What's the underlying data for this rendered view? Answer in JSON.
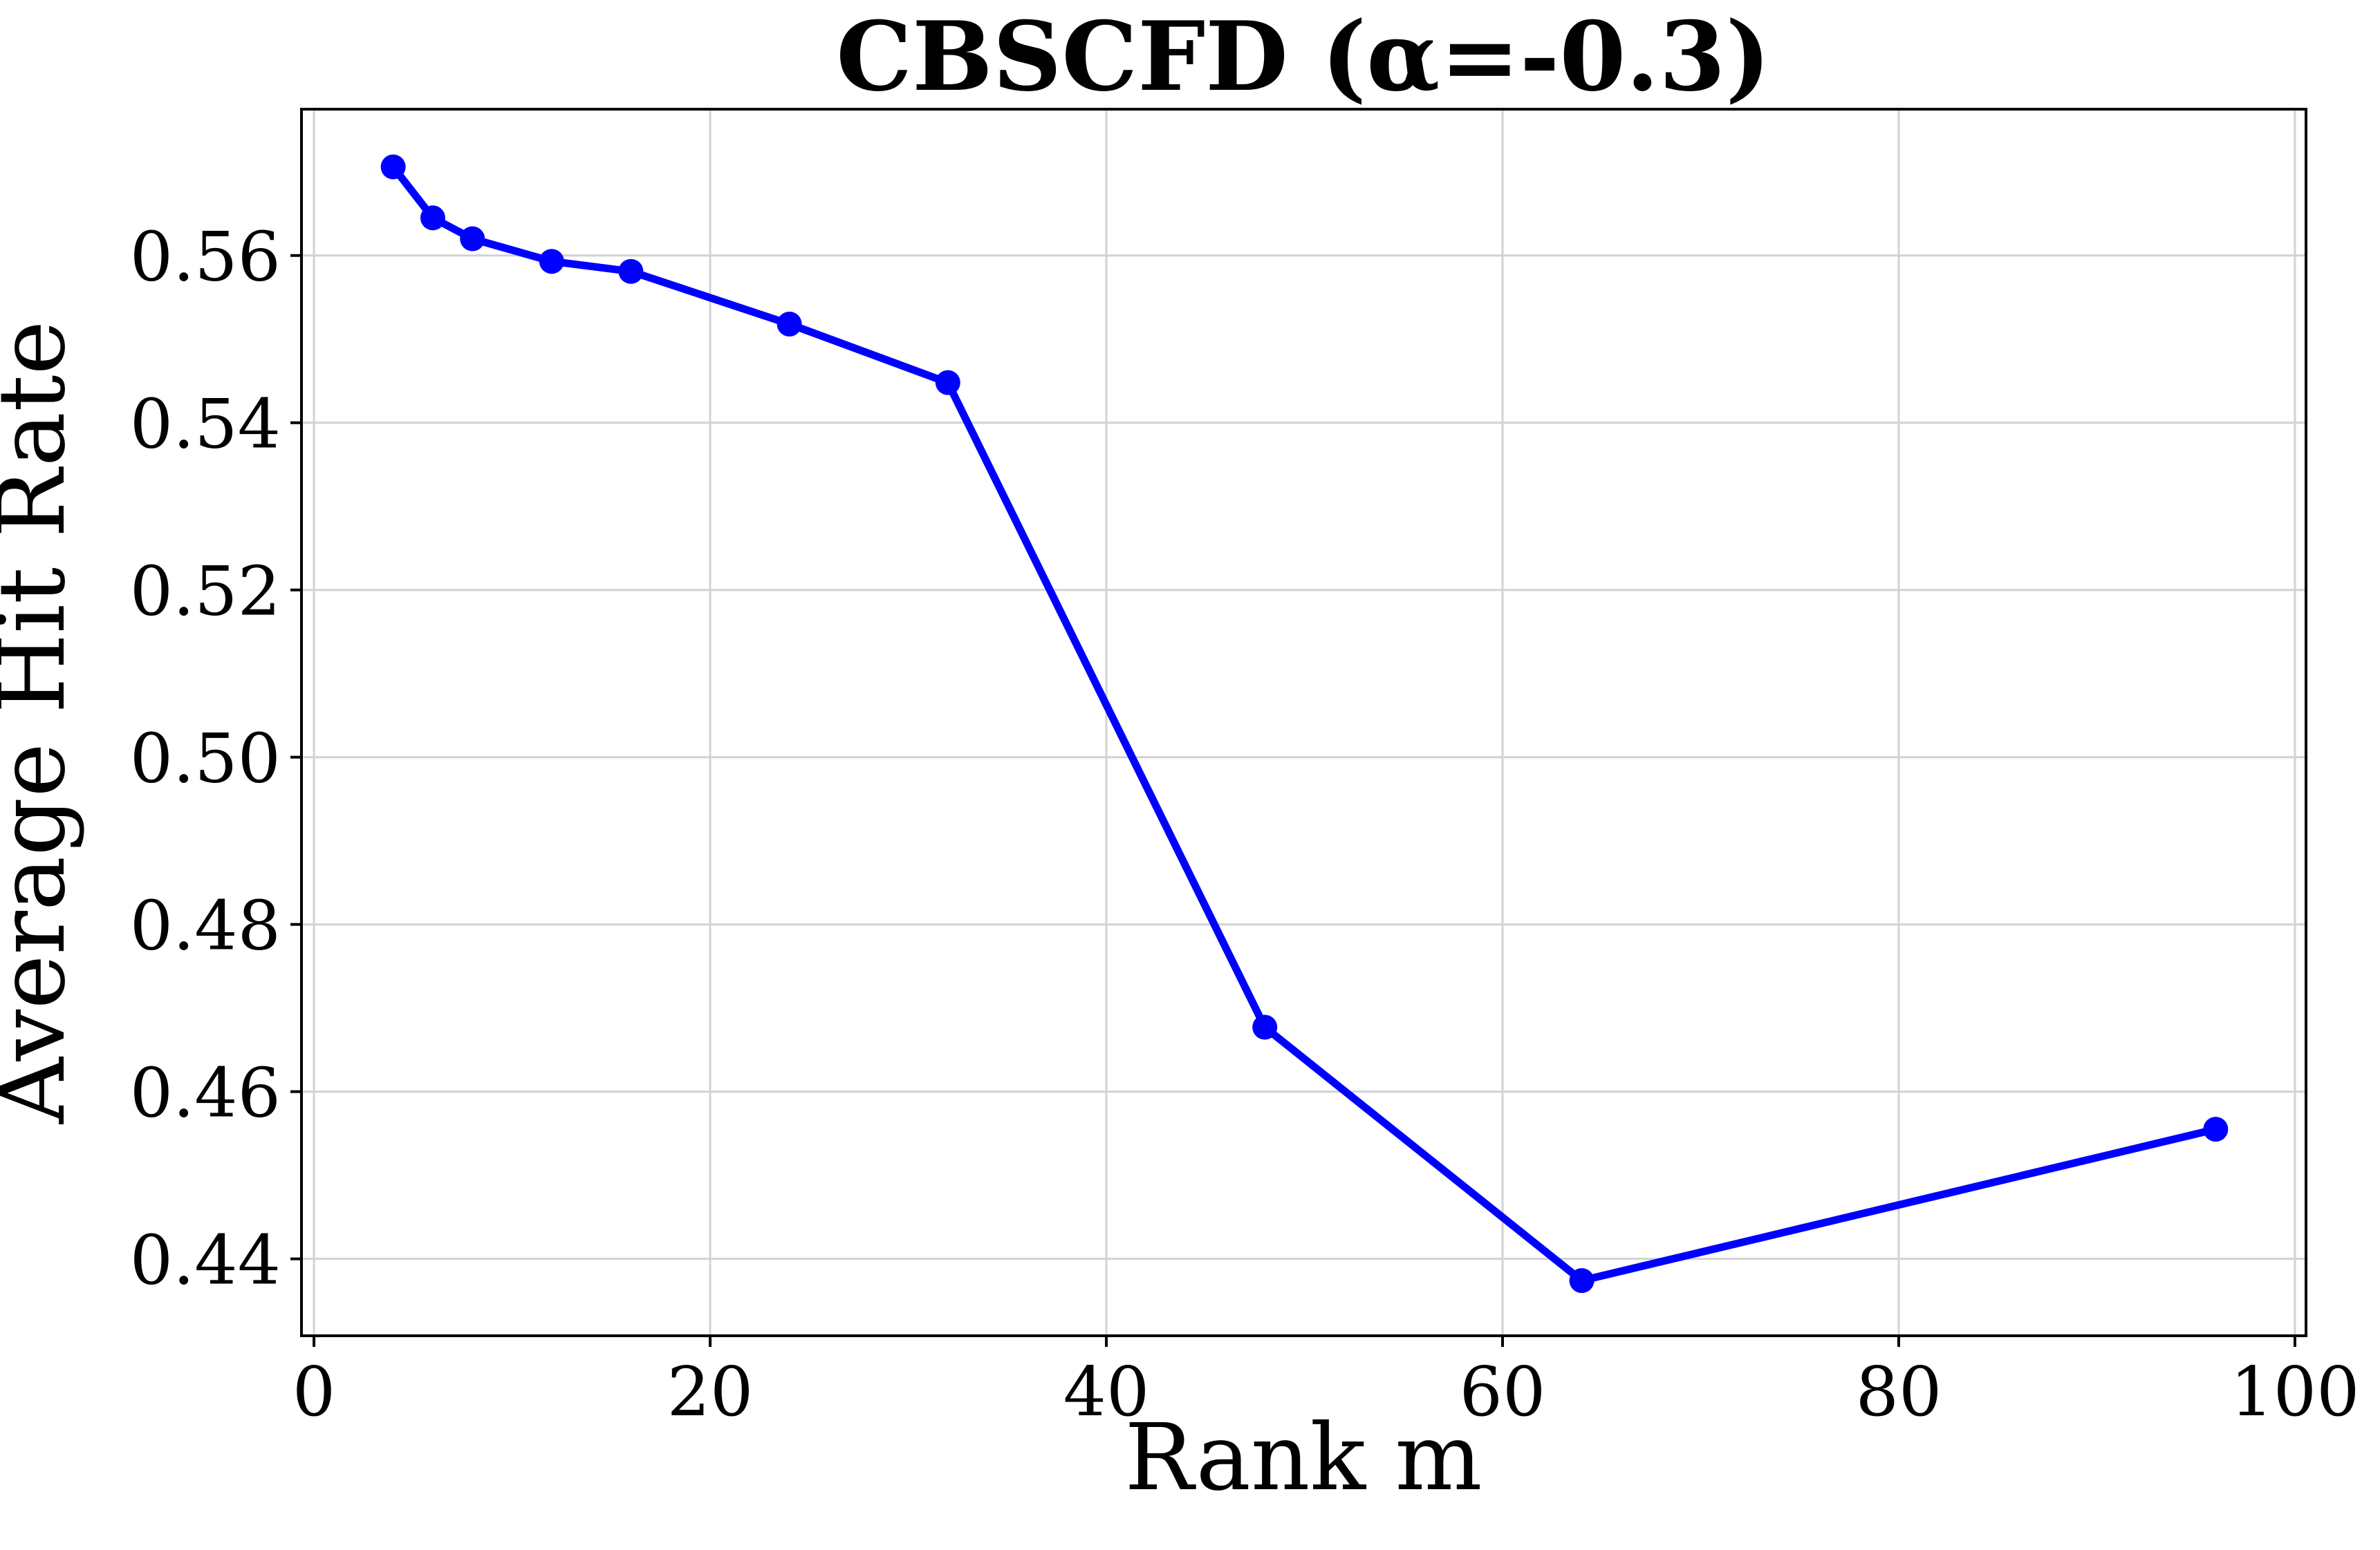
{
  "figure": {
    "background_color": "#ffffff",
    "text_color": "#000000"
  },
  "chart_data": {
    "type": "line",
    "title": "CBSCFD (α=-0.3)",
    "xlabel": "Rank m",
    "ylabel": "Average Hit Rate",
    "series": [
      {
        "name": "CBSCFD alpha=-0.3",
        "x": [
          4,
          6,
          8,
          12,
          16,
          24,
          32,
          48,
          64,
          96
        ],
        "y": [
          0.5706,
          0.5645,
          0.562,
          0.5593,
          0.5581,
          0.5518,
          0.5448,
          0.4677,
          0.4374,
          0.4555
        ]
      }
    ],
    "xticks": [
      0,
      20,
      40,
      60,
      80,
      100
    ],
    "ytick_labels": [
      "0.44",
      "0.46",
      "0.48",
      "0.50",
      "0.52",
      "0.54",
      "0.56"
    ],
    "xlim": [
      -0.63,
      100.56
    ],
    "ylim": [
      0.4308,
      0.5775
    ],
    "grid": true,
    "legend_position": "none",
    "line_color": "#0000ff",
    "marker": "circle",
    "marker_color": "#0000ff",
    "grid_color": "#d2d2d2",
    "axis_color": "#000000"
  }
}
